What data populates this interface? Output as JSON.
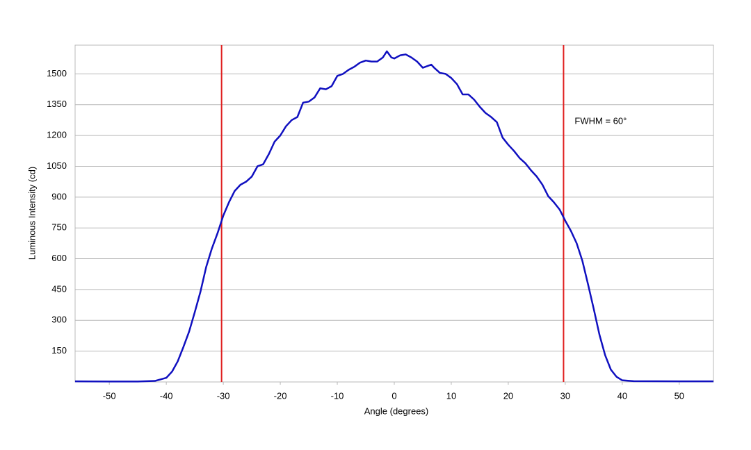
{
  "chart_data": {
    "type": "line",
    "x_label": "Angle (degrees)",
    "y_label": "Luminous Intensity (cd)",
    "annotation": "FWHM = 60°",
    "xlim": [
      -56,
      56
    ],
    "ylim": [
      0,
      1640
    ],
    "xticks": [
      -50,
      -40,
      -30,
      -20,
      -10,
      0,
      10,
      20,
      30,
      40,
      50
    ],
    "yticks": [
      150,
      300,
      450,
      600,
      750,
      900,
      1050,
      1200,
      1350,
      1500
    ],
    "grid": true,
    "reference_lines": [
      -30.3,
      29.7
    ],
    "reference_color": "#e02020",
    "x": [
      -56,
      -50,
      -45,
      -42,
      -40,
      -39,
      -38,
      -37,
      -36,
      -35,
      -34,
      -33,
      -32,
      -31,
      -30,
      -29,
      -28,
      -27,
      -26,
      -25,
      -24,
      -23,
      -22,
      -21,
      -20,
      -19,
      -18,
      -17,
      -16,
      -15,
      -14,
      -13,
      -12,
      -11,
      -10,
      -9,
      -8,
      -7,
      -6,
      -5,
      -4,
      -3,
      -2,
      -1.3,
      -0.5,
      0,
      1,
      2,
      3,
      4,
      5,
      6,
      6.5,
      7,
      8,
      9,
      10,
      11,
      12,
      13,
      14,
      15,
      16,
      17,
      18,
      19,
      20,
      21,
      22,
      23,
      24,
      25,
      26,
      27,
      28,
      29,
      30,
      31,
      32,
      33,
      34,
      35,
      36,
      37,
      38,
      39,
      40,
      42,
      50,
      56
    ],
    "series": [
      {
        "color": "#1010c0",
        "values": [
          3,
          2,
          2,
          5,
          20,
          50,
          100,
          170,
          245,
          340,
          440,
          560,
          650,
          725,
          810,
          875,
          930,
          960,
          975,
          1000,
          1050,
          1060,
          1110,
          1170,
          1200,
          1245,
          1275,
          1290,
          1360,
          1365,
          1385,
          1430,
          1425,
          1440,
          1490,
          1500,
          1520,
          1535,
          1555,
          1565,
          1560,
          1560,
          1580,
          1610,
          1580,
          1575,
          1590,
          1595,
          1580,
          1560,
          1530,
          1540,
          1545,
          1530,
          1505,
          1500,
          1480,
          1450,
          1400,
          1400,
          1375,
          1340,
          1310,
          1290,
          1265,
          1190,
          1155,
          1125,
          1090,
          1065,
          1030,
          1000,
          960,
          905,
          875,
          840,
          785,
          735,
          675,
          590,
          475,
          355,
          230,
          130,
          60,
          25,
          8,
          4,
          3,
          3
        ]
      }
    ]
  }
}
